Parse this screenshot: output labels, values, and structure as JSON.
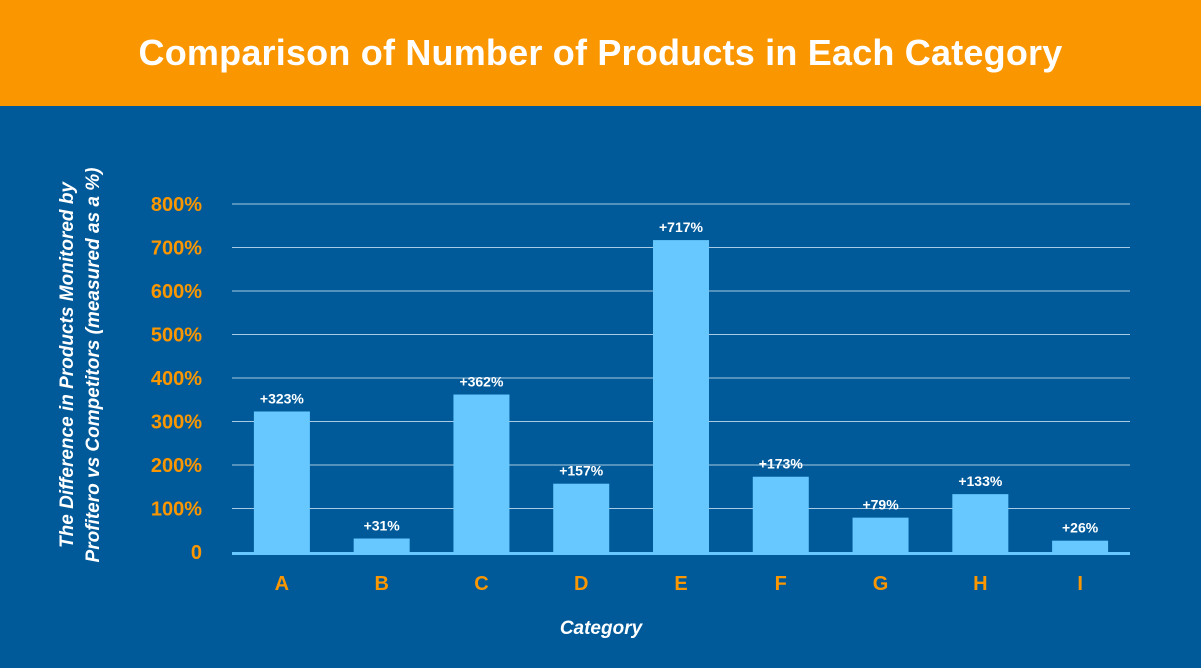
{
  "header": {
    "title": "Comparison of Number of Products in Each Category"
  },
  "colors": {
    "header_bg": "#fa9600",
    "chart_bg": "#005a9a",
    "bar": "#66c8ff",
    "tick_text": "#fa9600",
    "gridline": "#a9cbe3"
  },
  "chart_data": {
    "type": "bar",
    "title": "Comparison of Number of Products in Each Category",
    "xlabel": "Category",
    "ylabel_lines": [
      "The Difference in Products Monitored by",
      "Profitero vs Competitors (measured as a %)"
    ],
    "categories": [
      "A",
      "B",
      "C",
      "D",
      "E",
      "F",
      "G",
      "H",
      "I"
    ],
    "values": [
      323,
      31,
      362,
      157,
      717,
      173,
      79,
      133,
      26
    ],
    "data_labels": [
      "+323%",
      "+31%",
      "+362%",
      "+157%",
      "+717%",
      "+173%",
      "+79%",
      "+133%",
      "+26%"
    ],
    "ylim": [
      0,
      800
    ],
    "yticks": [
      0,
      100,
      200,
      300,
      400,
      500,
      600,
      700,
      800
    ],
    "ytick_labels": [
      "0",
      "100%",
      "200%",
      "300%",
      "400%",
      "500%",
      "600%",
      "700%",
      "800%"
    ],
    "grid": true,
    "legend": "none"
  }
}
